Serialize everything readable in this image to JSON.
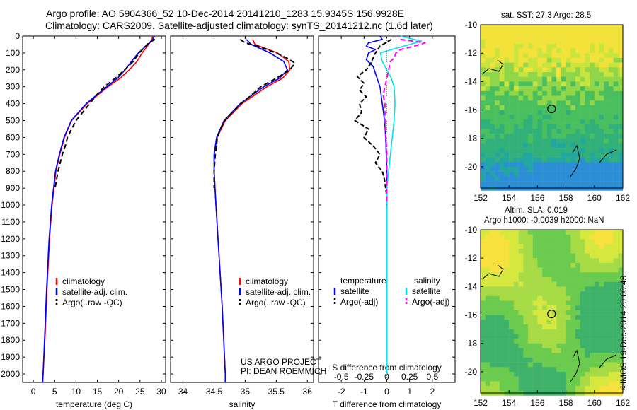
{
  "header": {
    "line1": "Argo profile: AO 5904366_52 10-Dec-2014 20141210_1283 15.9345S 156.9928E",
    "line2": "Climatology: CARS2009. Satellite-adjusted climatology: synTS_20141212.nc (1.6d later)"
  },
  "project_note": {
    "line1": "US ARGO PROJECT",
    "line2": "PI: DEAN ROEMMICH"
  },
  "credit": "©IMOS 19-Dec-2014 20:00:43",
  "colors": {
    "climatology": "#ff0000",
    "satellite": "#0000ff",
    "argo": "#000000",
    "salinity_sat": "#00e5ee",
    "salinity_argo": "#ff00ff"
  },
  "chart_data": [
    {
      "type": "line",
      "name": "temperature-profile",
      "xlabel": "temperature (deg C)",
      "xlim": [
        -2.5,
        31
      ],
      "xticks": [
        0,
        5,
        10,
        15,
        20,
        25,
        30
      ],
      "ylim": [
        2050,
        0
      ],
      "yticks": [
        0,
        100,
        200,
        300,
        400,
        500,
        600,
        700,
        800,
        900,
        1000,
        1100,
        1200,
        1300,
        1400,
        1500,
        1600,
        1700,
        1800,
        1900,
        2000
      ],
      "legend": {
        "position": "bottom-right",
        "entries": [
          "climatology",
          "satellite-adj. clim.",
          "Argo(..raw -QC)"
        ]
      },
      "series": [
        {
          "name": "climatology",
          "depth": [
            0,
            20,
            50,
            100,
            150,
            200,
            250,
            300,
            400,
            500,
            600,
            700,
            800,
            1000,
            1200,
            1500,
            1750,
            2000,
            2050
          ],
          "values": [
            28.0,
            27.8,
            27.0,
            25.5,
            24.3,
            22.5,
            20.3,
            17.5,
            12.6,
            9.0,
            7.3,
            6.2,
            5.3,
            4.4,
            3.8,
            3.2,
            2.8,
            2.3,
            2.2
          ]
        },
        {
          "name": "satellite-adj. clim.",
          "depth": [
            0,
            20,
            50,
            100,
            150,
            200,
            250,
            300,
            400,
            500,
            600,
            700,
            800,
            1000,
            1200,
            1500,
            1750,
            2000,
            2050
          ],
          "values": [
            28.4,
            28.0,
            26.8,
            24.6,
            23.0,
            21.5,
            19.7,
            17.2,
            12.4,
            8.9,
            7.2,
            6.1,
            5.2,
            4.3,
            3.7,
            3.1,
            2.7,
            2.3,
            2.2
          ]
        },
        {
          "name": "Argo(..raw -QC)",
          "depth": [
            20,
            35,
            60,
            100,
            150,
            200,
            250,
            300,
            350,
            400,
            450,
            500,
            550,
            600,
            650,
            700,
            800,
            900
          ],
          "values": [
            28.5,
            27.3,
            26.3,
            24.8,
            23.4,
            21.4,
            19.2,
            16.6,
            14.8,
            13.2,
            11.6,
            10.0,
            9.0,
            8.0,
            7.5,
            6.8,
            5.8,
            5.1
          ]
        }
      ]
    },
    {
      "type": "line",
      "name": "salinity-profile",
      "xlabel": "salinity",
      "xlim": [
        33.8,
        36.1
      ],
      "xticks": [
        34,
        34.5,
        35,
        35.5,
        36
      ],
      "ylim": [
        2050,
        0
      ],
      "legend": {
        "position": "bottom-left",
        "entries": [
          "climatology",
          "satellite-adj. clim.",
          "Argo(..raw -QC)"
        ]
      },
      "series": [
        {
          "name": "climatology",
          "depth": [
            20,
            50,
            100,
            150,
            200,
            250,
            300,
            400,
            500,
            600,
            700,
            800,
            1000,
            1300,
            1600,
            2000,
            2050
          ],
          "values": [
            35.12,
            35.16,
            35.52,
            35.7,
            35.72,
            35.6,
            35.35,
            34.95,
            34.68,
            34.55,
            34.5,
            34.5,
            34.53,
            34.58,
            34.63,
            34.68,
            34.68
          ]
        },
        {
          "name": "satellite-adj. clim.",
          "depth": [
            20,
            50,
            100,
            150,
            200,
            250,
            300,
            400,
            500,
            600,
            700,
            800,
            1000,
            1300,
            1600,
            2000,
            2050
          ],
          "values": [
            35.02,
            35.1,
            35.4,
            35.62,
            35.68,
            35.55,
            35.3,
            34.92,
            34.66,
            34.54,
            34.5,
            34.5,
            34.53,
            34.58,
            34.63,
            34.68,
            34.68
          ]
        },
        {
          "name": "Argo(..raw -QC)",
          "depth": [
            20,
            40,
            60,
            100,
            130,
            160,
            200,
            250,
            300,
            350,
            400,
            450,
            500,
            550,
            600,
            650,
            700,
            800,
            900
          ],
          "values": [
            34.92,
            35.0,
            35.2,
            35.5,
            35.67,
            35.8,
            35.72,
            35.5,
            35.25,
            35.1,
            34.93,
            34.8,
            34.67,
            34.6,
            34.55,
            34.54,
            34.52,
            34.5,
            34.5
          ]
        }
      ]
    },
    {
      "type": "line",
      "name": "difference-profile",
      "xlabel": "T difference from climatology",
      "top_axis_label": "S difference from climatology",
      "xlim": [
        -3,
        3
      ],
      "xticks": [
        -2,
        -1,
        0,
        1,
        2
      ],
      "top_ticks": [
        "-0.5",
        "-0.25",
        "0",
        "0.25",
        "0.5"
      ],
      "ylim": [
        2050,
        0
      ],
      "legend": {
        "position": "bottom",
        "group_temperature": "temperature",
        "group_salinity": "salinity",
        "entries": [
          "satellite",
          "Argo(-adj)",
          "satellite",
          "Argo(-adj)"
        ]
      },
      "series": [
        {
          "name": "temperature satellite",
          "depth": [
            0,
            20,
            40,
            60,
            80,
            100,
            140,
            180,
            220,
            260,
            300,
            400,
            500,
            600,
            800,
            1000,
            1500,
            2000
          ],
          "values": [
            -0.3,
            -0.2,
            -0.8,
            -0.9,
            -0.5,
            -0.8,
            -0.9,
            -0.6,
            -0.5,
            -0.4,
            -0.3,
            -0.2,
            -0.1,
            -0.05,
            0.0,
            0.0,
            0.0,
            0.0
          ]
        },
        {
          "name": "temperature Argo(-adj)",
          "depth": [
            20,
            60,
            100,
            160,
            200,
            240,
            280,
            320,
            360,
            400,
            450,
            500,
            550,
            600,
            650,
            700,
            750,
            800,
            850,
            900,
            950
          ],
          "values": [
            0.2,
            -0.3,
            -0.5,
            -0.7,
            -0.9,
            -1.3,
            -1.0,
            -1.2,
            -0.9,
            -1.2,
            -1.1,
            -1.4,
            -0.8,
            -1.0,
            -0.6,
            -0.3,
            -0.5,
            -0.2,
            -0.1,
            -0.05,
            0.0
          ]
        },
        {
          "name": "salinity satellite",
          "depth": [
            0,
            30,
            50,
            80,
            100,
            150,
            200,
            250,
            300,
            400,
            500,
            600,
            700,
            800,
            900,
            1000,
            1500,
            2000
          ],
          "values": [
            0.15,
            0.38,
            0.25,
            0.05,
            -0.07,
            -0.05,
            0.0,
            0.05,
            0.08,
            0.09,
            0.08,
            0.06,
            0.04,
            0.02,
            0.0,
            0.0,
            0.0,
            0.0
          ]
        },
        {
          "name": "salinity Argo(-adj)",
          "depth": [
            20,
            40,
            60,
            80,
            100,
            130,
            150,
            200,
            250,
            300,
            350,
            400,
            500,
            600,
            700,
            800,
            900,
            1000
          ],
          "values": [
            0.15,
            0.42,
            0.3,
            0.15,
            0.1,
            0.08,
            0.04,
            0.02,
            0.0,
            -0.02,
            -0.04,
            -0.02,
            -0.02,
            -0.01,
            0.0,
            0.0,
            0.0,
            0.0
          ]
        }
      ]
    },
    {
      "type": "heatmap",
      "name": "sst-map",
      "title": "sat. SST: 27.3  Argo: 28.5",
      "xlim": [
        152,
        162
      ],
      "ylim": [
        -21.5,
        -10
      ],
      "xticks": [
        152,
        154,
        156,
        158,
        160,
        162
      ],
      "yticks": [
        -10,
        -12,
        -14,
        -16,
        -18,
        -20
      ],
      "float_position": {
        "lon": 156.99,
        "lat": -15.93
      }
    },
    {
      "type": "heatmap",
      "name": "sla-map",
      "title_line1": "Altim. SLA: 0.019",
      "title_line2": "Argo h1000: -0.0039 h2000: NaN",
      "xlim": [
        152,
        162
      ],
      "ylim": [
        -21.5,
        -10
      ],
      "xticks": [
        152,
        154,
        156,
        158,
        160,
        162
      ],
      "yticks": [
        -10,
        -12,
        -14,
        -16,
        -18,
        -20
      ],
      "float_position": {
        "lon": 156.99,
        "lat": -15.93
      }
    }
  ]
}
